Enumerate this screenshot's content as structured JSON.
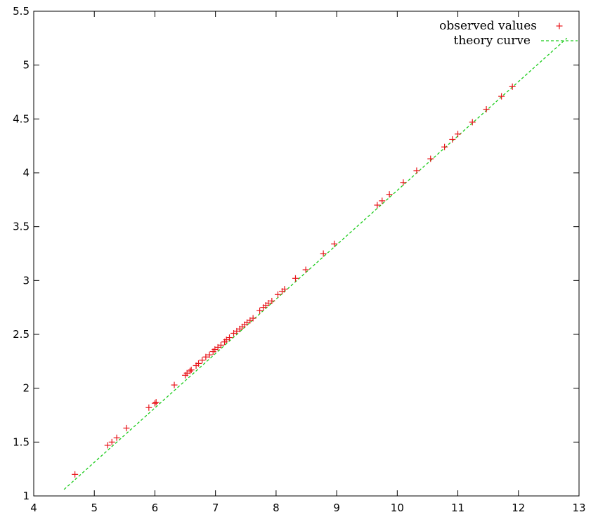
{
  "chart_data": {
    "type": "scatter",
    "xlim": [
      4,
      13
    ],
    "ylim": [
      1,
      5.5
    ],
    "x_ticks": [
      4,
      5,
      6,
      7,
      8,
      9,
      10,
      11,
      12,
      13
    ],
    "y_ticks": [
      1,
      1.5,
      2,
      2.5,
      3,
      3.5,
      4,
      4.5,
      5,
      5.5
    ],
    "x_tick_labels": [
      "4",
      "5",
      "6",
      "7",
      "8",
      "9",
      "10",
      "11",
      "12",
      "13"
    ],
    "y_tick_labels": [
      "1",
      "1.5",
      "2",
      "2.5",
      "3",
      "3.5",
      "4",
      "4.5",
      "5",
      "5.5"
    ],
    "grid": false,
    "legend_position": "top-right",
    "series": [
      {
        "name": "observed values",
        "type": "scatter",
        "marker": "+",
        "color": "#e8151a",
        "points": [
          [
            4.68,
            1.2
          ],
          [
            5.22,
            1.47
          ],
          [
            5.29,
            1.5
          ],
          [
            5.37,
            1.54
          ],
          [
            5.53,
            1.63
          ],
          [
            5.9,
            1.82
          ],
          [
            6.0,
            1.86
          ],
          [
            6.02,
            1.87
          ],
          [
            6.32,
            2.03
          ],
          [
            6.5,
            2.12
          ],
          [
            6.53,
            2.14
          ],
          [
            6.58,
            2.16
          ],
          [
            6.6,
            2.17
          ],
          [
            6.68,
            2.21
          ],
          [
            6.72,
            2.23
          ],
          [
            6.78,
            2.26
          ],
          [
            6.84,
            2.29
          ],
          [
            6.9,
            2.31
          ],
          [
            6.96,
            2.34
          ],
          [
            6.99,
            2.36
          ],
          [
            7.04,
            2.38
          ],
          [
            7.09,
            2.4
          ],
          [
            7.15,
            2.43
          ],
          [
            7.18,
            2.45
          ],
          [
            7.23,
            2.47
          ],
          [
            7.3,
            2.51
          ],
          [
            7.35,
            2.53
          ],
          [
            7.4,
            2.55
          ],
          [
            7.44,
            2.57
          ],
          [
            7.48,
            2.59
          ],
          [
            7.52,
            2.61
          ],
          [
            7.57,
            2.63
          ],
          [
            7.62,
            2.65
          ],
          [
            7.73,
            2.72
          ],
          [
            7.79,
            2.75
          ],
          [
            7.83,
            2.77
          ],
          [
            7.87,
            2.79
          ],
          [
            7.93,
            2.81
          ],
          [
            8.03,
            2.87
          ],
          [
            8.1,
            2.9
          ],
          [
            8.14,
            2.92
          ],
          [
            8.32,
            3.02
          ],
          [
            8.49,
            3.1
          ],
          [
            8.78,
            3.25
          ],
          [
            8.96,
            3.34
          ],
          [
            9.67,
            3.7
          ],
          [
            9.75,
            3.74
          ],
          [
            9.87,
            3.8
          ],
          [
            10.1,
            3.91
          ],
          [
            10.32,
            4.02
          ],
          [
            10.55,
            4.13
          ],
          [
            10.78,
            4.24
          ],
          [
            10.91,
            4.31
          ],
          [
            11.0,
            4.36
          ],
          [
            11.24,
            4.47
          ],
          [
            11.47,
            4.59
          ],
          [
            11.72,
            4.71
          ],
          [
            11.9,
            4.8
          ]
        ]
      },
      {
        "name": "theory curve",
        "type": "line",
        "dash": "dashed",
        "color": "#1ccc1c",
        "points": [
          [
            4.5,
            1.06
          ],
          [
            12.8,
            5.25
          ]
        ]
      }
    ]
  }
}
